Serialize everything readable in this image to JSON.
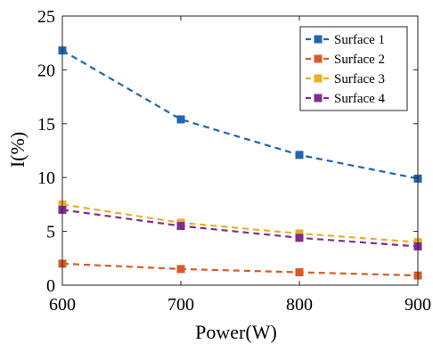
{
  "chart_data": {
    "type": "line",
    "title": "",
    "xlabel": "Power(W)",
    "ylabel": "I(%)",
    "x": [
      600,
      700,
      800,
      900
    ],
    "xlim": [
      600,
      900
    ],
    "ylim": [
      0,
      25
    ],
    "xticks": [
      600,
      700,
      800,
      900
    ],
    "yticks": [
      0,
      5,
      10,
      15,
      20,
      25
    ],
    "grid": false,
    "legend_position": "top-right",
    "line_style": "dashed",
    "marker": "square",
    "series": [
      {
        "name": "Surface 1",
        "color": "#2166b0",
        "values": [
          21.8,
          15.4,
          12.1,
          9.9
        ]
      },
      {
        "name": "Surface 2",
        "color": "#d95a26",
        "values": [
          2.0,
          1.5,
          1.2,
          0.9
        ]
      },
      {
        "name": "Surface 3",
        "color": "#e9b020",
        "values": [
          7.5,
          5.8,
          4.8,
          4.0
        ]
      },
      {
        "name": "Surface 4",
        "color": "#7e2f8e",
        "values": [
          7.0,
          5.5,
          4.4,
          3.6
        ]
      }
    ]
  }
}
